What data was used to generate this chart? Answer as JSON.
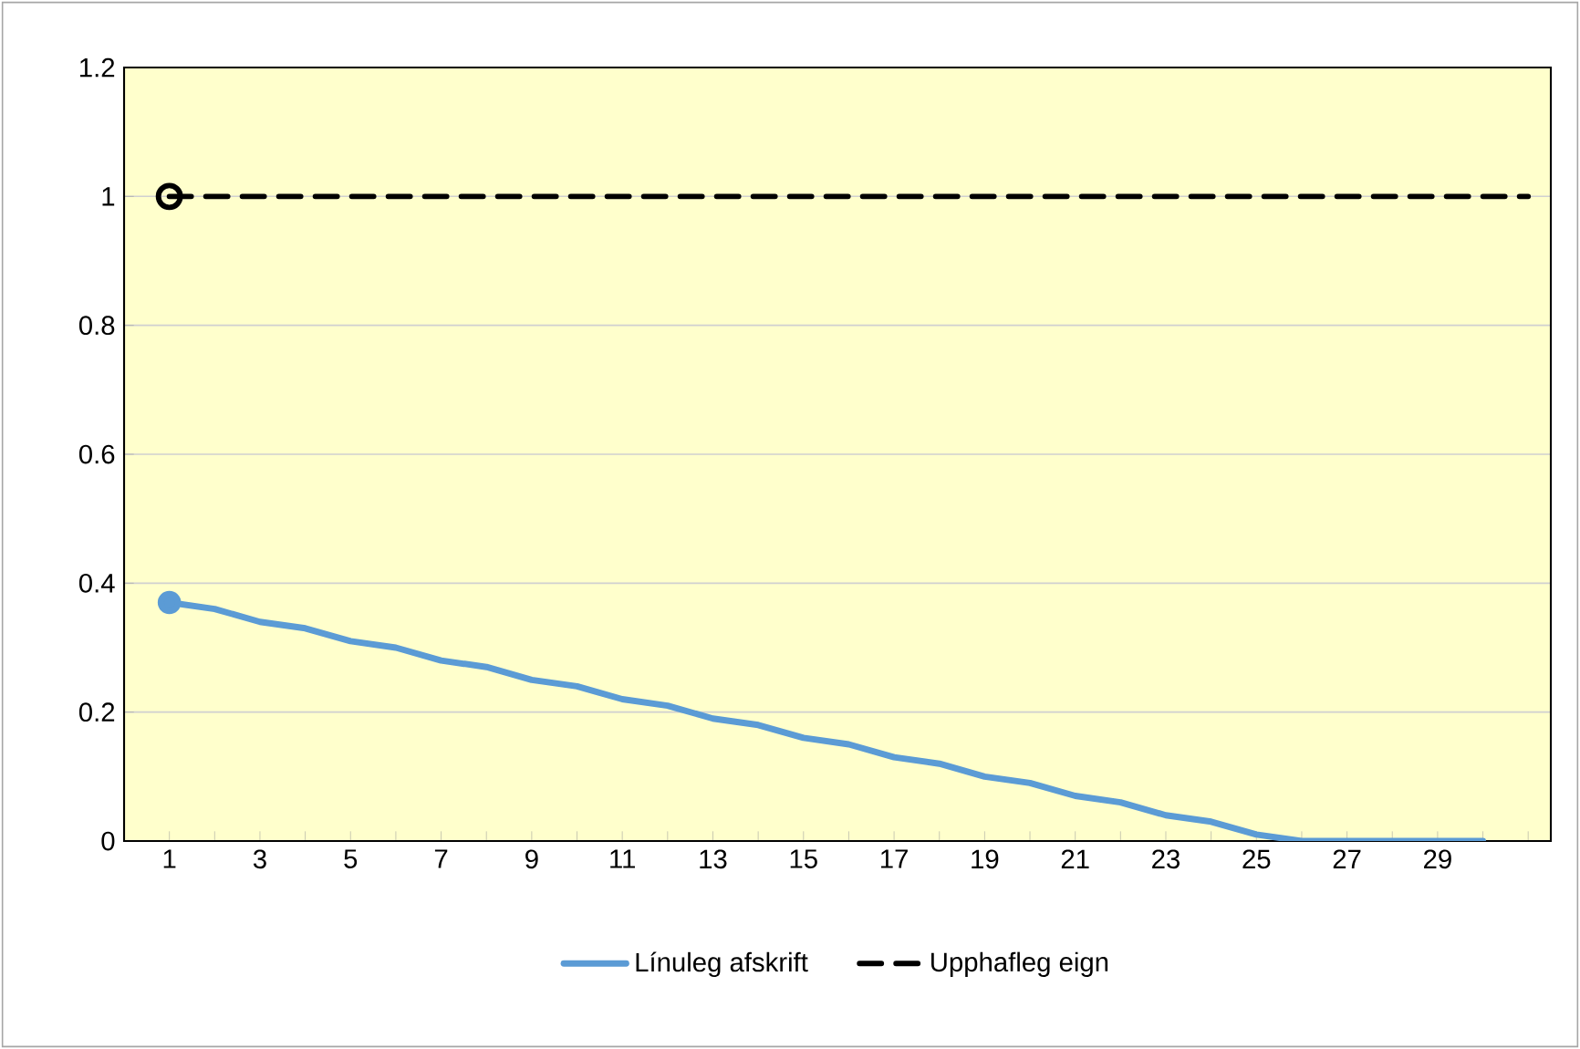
{
  "chart_data": {
    "type": "line",
    "categories": [
      "1",
      null,
      "3",
      null,
      "5",
      null,
      "7",
      null,
      "9",
      null,
      "11",
      null,
      "13",
      null,
      "15",
      null,
      "17",
      null,
      "19",
      null,
      "21",
      null,
      "23",
      null,
      "25",
      null,
      "27",
      null,
      "29",
      null,
      null
    ],
    "series": [
      {
        "name": "Línuleg afskrift",
        "color": "#5b9bd5",
        "line_style": "solid",
        "marker": "none",
        "values": [
          0.37,
          0.36,
          0.34,
          0.33,
          0.31,
          0.3,
          0.28,
          0.27,
          0.25,
          0.24,
          0.22,
          0.21,
          0.19,
          0.18,
          0.16,
          0.15,
          0.13,
          0.12,
          0.1,
          0.09,
          0.07,
          0.06,
          0.04,
          0.03,
          0.01,
          0,
          0,
          0,
          0,
          0,
          null
        ]
      },
      {
        "name": "Upphafleg eign",
        "color": "#000000",
        "line_style": "dashed",
        "marker": "none",
        "values": [
          1,
          1,
          1,
          1,
          1,
          1,
          1,
          1,
          1,
          1,
          1,
          1,
          1,
          1,
          1,
          1,
          1,
          1,
          1,
          1,
          1,
          1,
          1,
          1,
          1,
          1,
          1,
          1,
          1,
          1,
          1
        ]
      }
    ],
    "ylim": [
      0,
      1.2
    ],
    "yticks": [
      0,
      0.2,
      0.4,
      0.6,
      0.8,
      1,
      1.2
    ],
    "grid": "y",
    "legend": "bottom"
  }
}
